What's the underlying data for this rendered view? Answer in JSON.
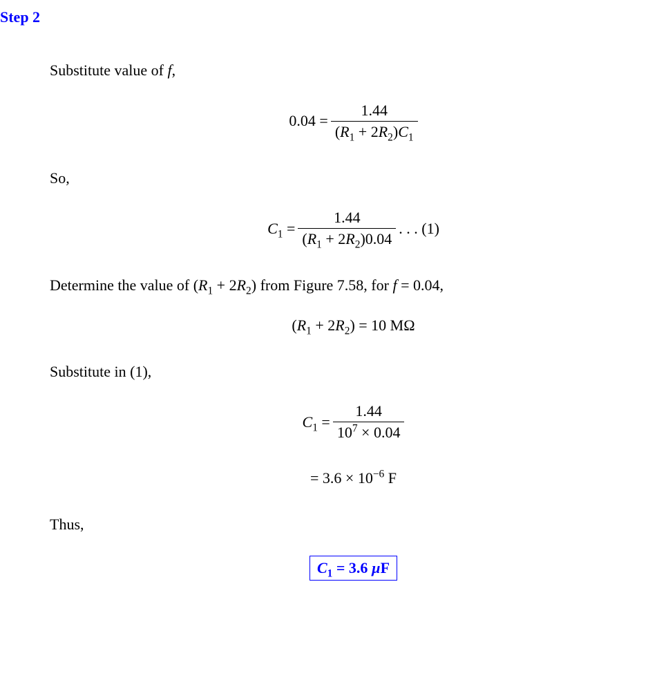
{
  "heading": "Step 2",
  "para1_pre": "Substitute value of ",
  "para1_var": "f",
  "para1_post": ",",
  "eq1": {
    "lhs": "0.04 =",
    "num": "1.44",
    "den_open": "(",
    "den_R1": "R",
    "den_R1_sub": "1",
    "den_plus": " + 2",
    "den_R2": "R",
    "den_R2_sub": "2",
    "den_close": ")",
    "den_C": "C",
    "den_C_sub": "1"
  },
  "para2": "So,",
  "eq2": {
    "lhs_C": "C",
    "lhs_C_sub": "1",
    "lhs_eq": " = ",
    "num": "1.44",
    "den_open": "(",
    "den_R1": "R",
    "den_R1_sub": "1",
    "den_plus": " + 2",
    "den_R2": "R",
    "den_R2_sub": "2",
    "den_close": ")0.04",
    "tail": " . . . (1)"
  },
  "para3_pre": "Determine the value of (",
  "para3_R1": "R",
  "para3_R1_sub": "1",
  "para3_plus": " + 2",
  "para3_R2": "R",
  "para3_R2_sub": "2",
  "para3_mid": ") from Figure 7.58, for ",
  "para3_f": "f",
  "para3_post": " = 0.04,",
  "eq3": {
    "open": "(",
    "R1": "R",
    "R1_sub": "1",
    "plus": " + 2",
    "R2": "R",
    "R2_sub": "2",
    "close": ") = 10 MΩ"
  },
  "para4": "Substitute in (1),",
  "eq4": {
    "lhs_C": "C",
    "lhs_C_sub": "1",
    "lhs_eq": " = ",
    "num": "1.44",
    "den_base": "10",
    "den_exp": "7",
    "den_rest": " × 0.04"
  },
  "eq5": {
    "eq": "= 3.6 × 10",
    "exp": "−6",
    "unit": " F"
  },
  "para5": "Thus,",
  "answer": {
    "C": "C",
    "C_sub": "1",
    "eq": " = 3.6 ",
    "mu": "µ",
    "unit": "F"
  }
}
